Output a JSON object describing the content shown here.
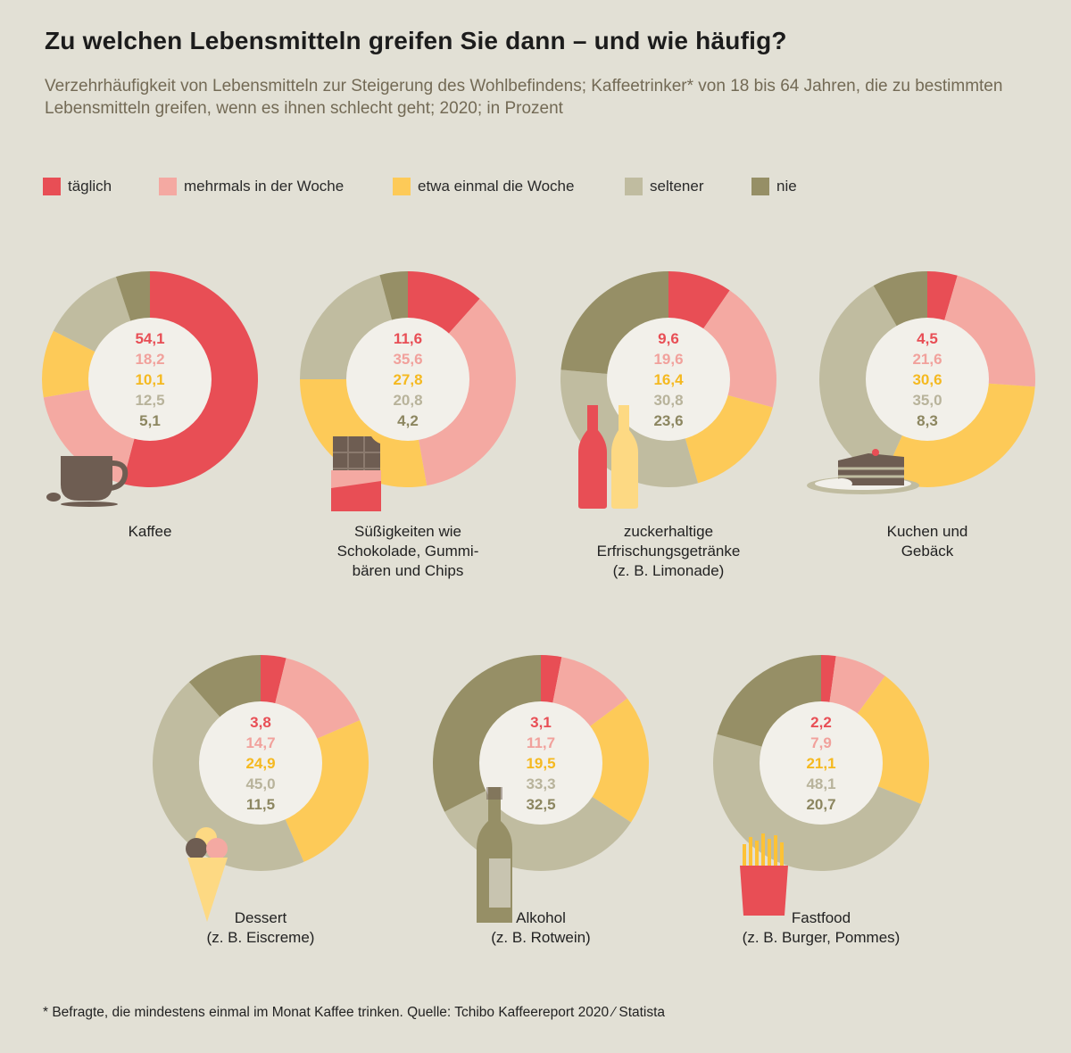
{
  "title": "Zu welchen Lebensmitteln greifen Sie dann – und wie häufig?",
  "subtitle": "Verzehrhäufigkeit von Lebensmitteln zur Steigerung des Wohlbefindens; Kaffeetrinker* von 18 bis 64 Jahren, die zu bestimmten Lebensmitteln greifen, wenn es ihnen schlecht geht; 2020; in Prozent",
  "footnote": "* Befragte, die mindestens einmal im Monat Kaffee trinken. Quelle: Tchibo Kaffeereport 2020 ⁄ Statista",
  "chart_data": {
    "type": "donut",
    "legend_position": "top",
    "unit": "Prozent",
    "series_names": [
      "täglich",
      "mehrmals in der Woche",
      "etwa einmal die Woche",
      "seltener",
      "nie"
    ],
    "colors": [
      "#e84e55",
      "#f4a9a2",
      "#fdca58",
      "#c0bca0",
      "#968f66"
    ],
    "value_text_colors": [
      "#e84e55",
      "#f1a19c",
      "#f5b920",
      "#b8b39b",
      "#8c8660"
    ],
    "charts": [
      {
        "label": "Kaffee",
        "values": [
          "54,1",
          "18,2",
          "10,1",
          "12,5",
          "5,1"
        ],
        "icon": "coffee-cup-icon"
      },
      {
        "label": "Süßigkeiten wie Schokolade, Gummibären und Chips",
        "label_lines": [
          "Süßigkeiten wie",
          "Schokolade, Gummi-",
          "bären und Chips"
        ],
        "values": [
          "11,6",
          "35,6",
          "27,8",
          "20,8",
          "4,2"
        ],
        "icon": "chocolate-bar-icon"
      },
      {
        "label": "zuckerhaltige Erfrischungsgetränke (z. B. Limonade)",
        "label_lines": [
          "zuckerhaltige",
          "Erfrischungsgetränke",
          "(z. B. Limonade)"
        ],
        "values": [
          "9,6",
          "19,6",
          "16,4",
          "30,8",
          "23,6"
        ],
        "icon": "soda-bottles-icon"
      },
      {
        "label": "Kuchen und Gebäck",
        "label_lines": [
          "Kuchen und",
          "Gebäck"
        ],
        "values": [
          "4,5",
          "21,6",
          "30,6",
          "35,0",
          "8,3"
        ],
        "icon": "cake-slice-icon"
      },
      {
        "label": "Dessert (z. B. Eiscreme)",
        "label_lines": [
          "Dessert",
          "(z. B. Eiscreme)"
        ],
        "values": [
          "3,8",
          "14,7",
          "24,9",
          "45,0",
          "11,5"
        ],
        "icon": "ice-cream-icon"
      },
      {
        "label": "Alkohol (z. B. Rotwein)",
        "label_lines": [
          "Alkohol",
          "(z. B. Rotwein)"
        ],
        "values": [
          "3,1",
          "11,7",
          "19,5",
          "33,3",
          "32,5"
        ],
        "icon": "wine-bottle-icon"
      },
      {
        "label": "Fastfood (z. B. Burger, Pommes)",
        "label_lines": [
          "Fastfood",
          "(z. B. Burger, Pommes)"
        ],
        "values": [
          "2,2",
          "7,9",
          "21,1",
          "48,1",
          "20,7"
        ],
        "icon": "fries-icon"
      }
    ]
  }
}
